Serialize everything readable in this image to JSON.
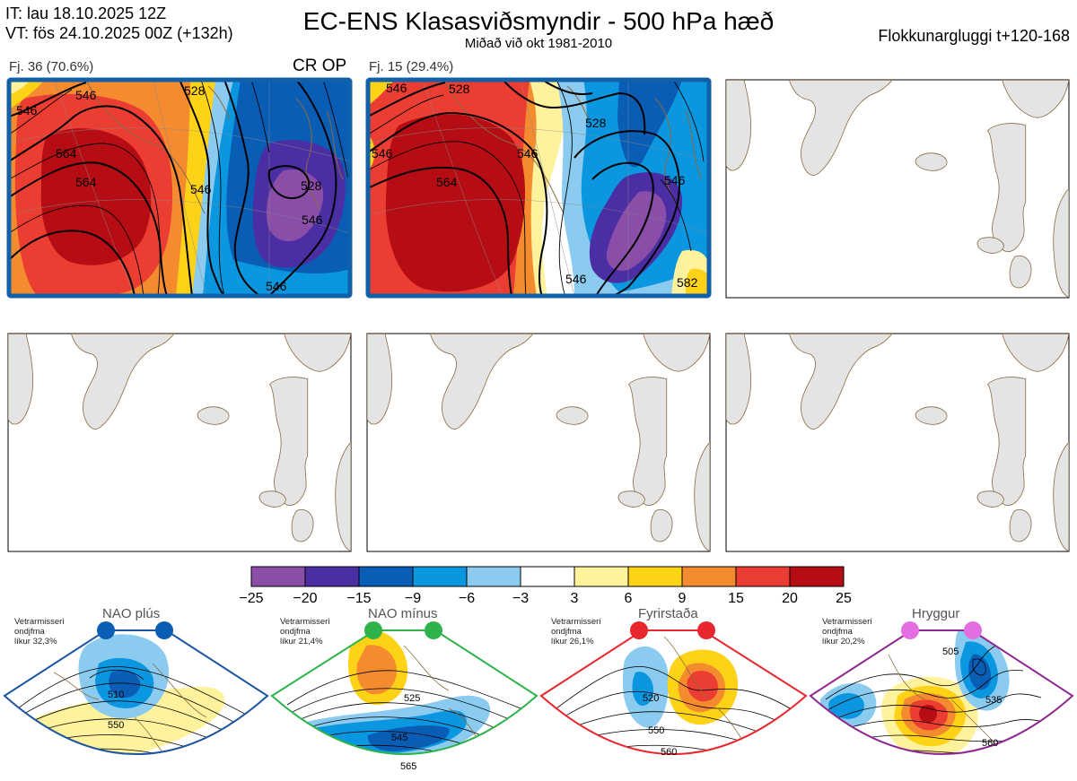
{
  "header": {
    "it_line": "IT: lau 18.10.2025 12Z",
    "vt_line": "VT: fös 24.10.2025 00Z  (+132h)",
    "title": "EC-ENS Klasasviðsmyndir - 500 hPa hæð",
    "subtitle": "Miðað við okt 1981-2010",
    "window": "Flokkunargluggi t+120-168"
  },
  "clusters": [
    {
      "label": "Fj. 36 (70.6%)",
      "tag": "CR OP",
      "contours": [
        "546",
        "564",
        "528",
        "546",
        "528",
        "546",
        "564",
        "546",
        "546"
      ]
    },
    {
      "label": "Fj. 15 (29.4%)",
      "contours": [
        "546",
        "528",
        "528",
        "546",
        "564",
        "546",
        "546",
        "546",
        "582"
      ]
    }
  ],
  "colorbar": {
    "ticks": [
      "−25",
      "−20",
      "−15",
      "−9",
      "−6",
      "−3",
      "3",
      "6",
      "9",
      "15",
      "20",
      "25"
    ],
    "colors": [
      "#8a4da8",
      "#4b2ea3",
      "#0a5db4",
      "#0b96e0",
      "#8ccbf0",
      "#ffffff",
      "#fff29c",
      "#fed217",
      "#f58b2f",
      "#ec3d33",
      "#b50d13"
    ]
  },
  "regimes": [
    {
      "name": "NAO plús",
      "info": [
        "Vetrarmisseri",
        "ondjfma",
        "líkur 32,3%"
      ],
      "color": "#0a5db4",
      "contours": [
        "510",
        "550"
      ]
    },
    {
      "name": "NAO mínus",
      "info": [
        "Vetrarmisseri",
        "ondjfma",
        "líkur 21,4%"
      ],
      "color": "#2db34a",
      "contours": [
        "525",
        "545",
        "565"
      ]
    },
    {
      "name": "Fyrirstaða",
      "info": [
        "Vetrarmisseri",
        "ondjfma",
        "líkur 26,1%"
      ],
      "color": "#e8262d",
      "contours": [
        "520",
        "550",
        "560"
      ]
    },
    {
      "name": "Hryggur",
      "info": [
        "Vetrarmisseri",
        "ondjfma",
        "líkur 20,2%"
      ],
      "color": "#e26ee2",
      "contours": [
        "505",
        "535",
        "560"
      ]
    }
  ]
}
